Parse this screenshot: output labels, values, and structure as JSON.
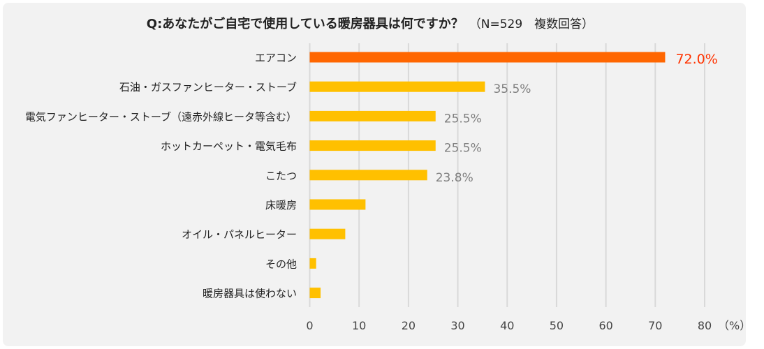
{
  "chart_data": {
    "type": "bar",
    "orientation": "horizontal",
    "title": "Q:あなたがご自宅で使用している暖房器具は何ですか？",
    "subtitle": "（N=529　複数回答）",
    "categories": [
      "エアコン",
      "石油・ガスファンヒーター・ストーブ",
      "電気ファンヒーター・ストーブ（遠赤外線ヒータ等含む）",
      "ホットカーペット・電気毛布",
      "こたつ",
      "床暖房",
      "オイル・パネルヒーター",
      "その他",
      "暖房器具は使わない"
    ],
    "values": [
      72.0,
      35.5,
      25.5,
      25.5,
      23.8,
      11.3,
      7.2,
      1.3,
      2.2
    ],
    "data_labels": [
      "72.0%",
      "35.5%",
      "25.5%",
      "25.5%",
      "23.8%",
      "",
      "",
      "",
      ""
    ],
    "xlim": [
      0,
      80
    ],
    "xticks": [
      "0",
      "10",
      "20",
      "30",
      "40",
      "50",
      "60",
      "70",
      "80"
    ],
    "xunit": "（%）",
    "grid": true,
    "colors": {
      "highlight": "#ff6600",
      "default": "#ffc000",
      "highlight_label": "#ff3300",
      "label": "#7f7f7f"
    }
  }
}
